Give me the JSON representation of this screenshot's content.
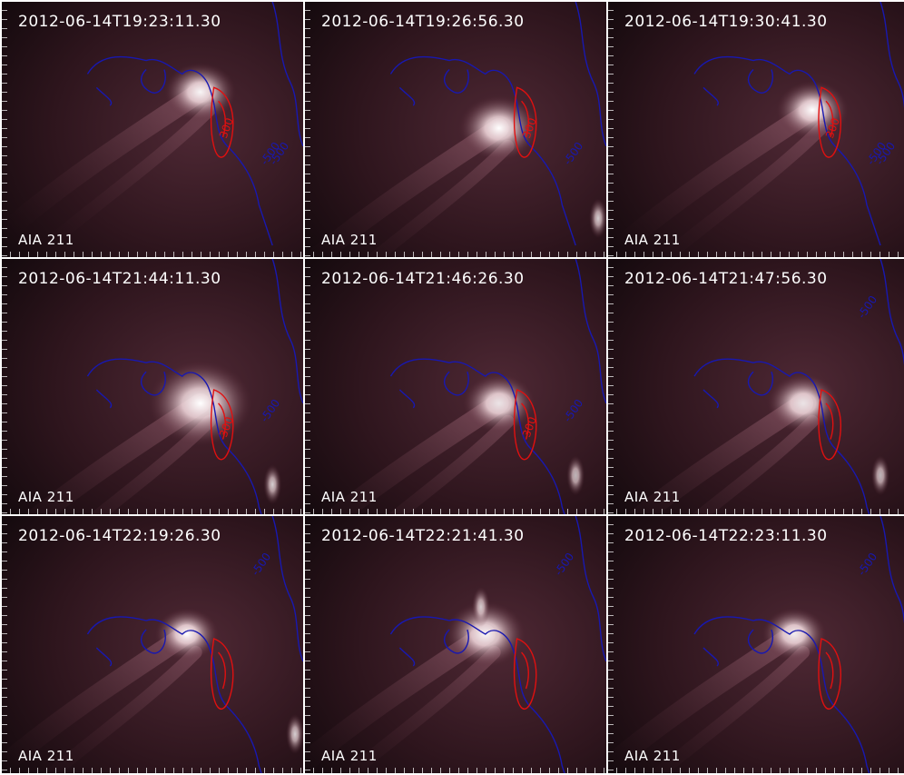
{
  "colors": {
    "positive_contour": "#e01010",
    "negative_contour": "#1818b0",
    "background": "#1a0d12",
    "bright": "#ffffff"
  },
  "panels": [
    {
      "timestamp": "2012-06-14T19:23:11.30",
      "instrument": "AIA 211",
      "contour_labels": [
        "300",
        "-500",
        "-500"
      ]
    },
    {
      "timestamp": "2012-06-14T19:26:56.30",
      "instrument": "AIA 211",
      "contour_labels": [
        "300",
        "-500"
      ]
    },
    {
      "timestamp": "2012-06-14T19:30:41.30",
      "instrument": "AIA 211",
      "contour_labels": [
        "300",
        "-500",
        "-500"
      ]
    },
    {
      "timestamp": "2012-06-14T21:44:11.30",
      "instrument": "AIA 211",
      "contour_labels": [
        "300",
        "-500"
      ]
    },
    {
      "timestamp": "2012-06-14T21:46:26.30",
      "instrument": "AIA 211",
      "contour_labels": [
        "300",
        "-500"
      ]
    },
    {
      "timestamp": "2012-06-14T21:47:56.30",
      "instrument": "AIA 211",
      "contour_labels": [
        "-500"
      ]
    },
    {
      "timestamp": "2012-06-14T22:19:26.30",
      "instrument": "AIA 211",
      "contour_labels": [
        "-500"
      ]
    },
    {
      "timestamp": "2012-06-14T22:21:41.30",
      "instrument": "AIA 211",
      "contour_labels": [
        "-500"
      ]
    },
    {
      "timestamp": "2012-06-14T22:23:11.30",
      "instrument": "AIA 211",
      "contour_labels": [
        "-500"
      ]
    }
  ]
}
